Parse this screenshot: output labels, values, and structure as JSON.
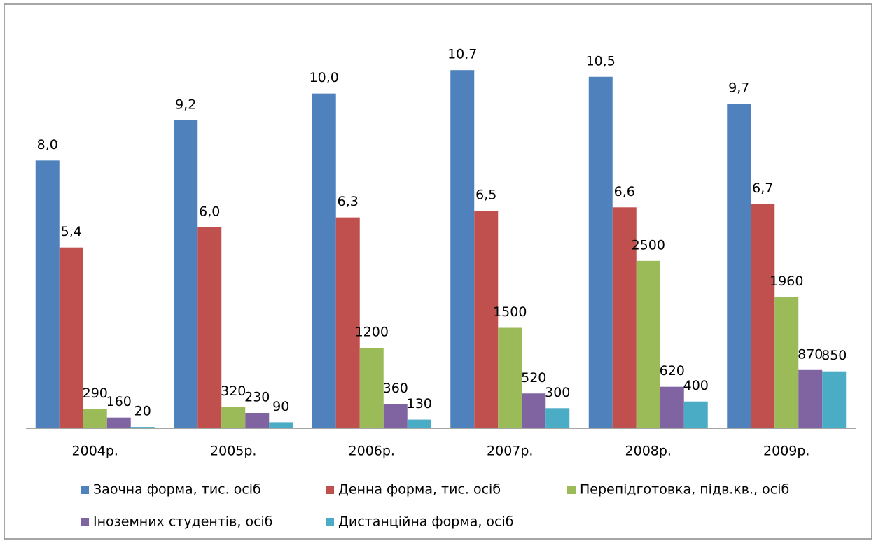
{
  "chart_data": {
    "type": "bar",
    "categories": [
      "2004р.",
      "2005р.",
      "2006р.",
      "2007р.",
      "2008р.",
      "2009р."
    ],
    "ylim": [
      0,
      12
    ],
    "y2lim": [
      0,
      6000
    ],
    "series": [
      {
        "name": "Заочна форма, тис. осіб",
        "color": "#4f81bd",
        "values": [
          8.0,
          9.2,
          10.0,
          10.7,
          10.5,
          9.7
        ],
        "value_labels": [
          "8,0",
          "9,2",
          "10,0",
          "10,7",
          "10,5",
          "9,7"
        ]
      },
      {
        "name": "Денна форма, тис. осіб",
        "color": "#c0504d",
        "values": [
          5.4,
          6.0,
          6.3,
          6.5,
          6.6,
          6.7
        ],
        "value_labels": [
          "5,4",
          "6,0",
          "6,3",
          "6,5",
          "6,6",
          "6,7"
        ]
      },
      {
        "name": "Перепідготовка, підв.кв., осіб",
        "color": "#9bbb59",
        "axis": "y2",
        "values": [
          290,
          320,
          1200,
          1500,
          2500,
          1960
        ]
      },
      {
        "name": "Іноземних студентів, осіб",
        "color": "#8064a2",
        "axis": "y2",
        "values": [
          160,
          230,
          360,
          520,
          620,
          870
        ]
      },
      {
        "name": "Дистанційна форма, осіб",
        "color": "#4bacc6",
        "axis": "y2",
        "values": [
          20,
          90,
          130,
          300,
          400,
          850
        ]
      }
    ],
    "legend": "bottom"
  }
}
